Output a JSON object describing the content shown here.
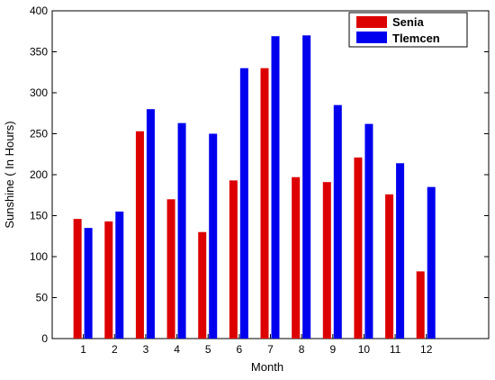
{
  "chart_data": {
    "type": "bar",
    "title": "",
    "xlabel": "Month",
    "ylabel": "Sunshine ( In Hours)",
    "categories": [
      "1",
      "2",
      "3",
      "4",
      "5",
      "6",
      "7",
      "8",
      "9",
      "10",
      "11",
      "12"
    ],
    "series": [
      {
        "name": "Senia",
        "color": "#dd0000",
        "values": [
          146,
          143,
          253,
          170,
          130,
          193,
          330,
          197,
          191,
          221,
          176,
          82
        ]
      },
      {
        "name": "Tlemcen",
        "color": "#0000ee",
        "values": [
          135,
          155,
          280,
          263,
          250,
          330,
          369,
          370,
          285,
          262,
          214,
          185
        ]
      }
    ],
    "ylim": [
      0,
      400
    ],
    "yticks": [
      0,
      50,
      100,
      150,
      200,
      250,
      300,
      350,
      400
    ],
    "xlim": [
      0,
      14
    ],
    "grid": false,
    "legend_position": "top-right"
  }
}
